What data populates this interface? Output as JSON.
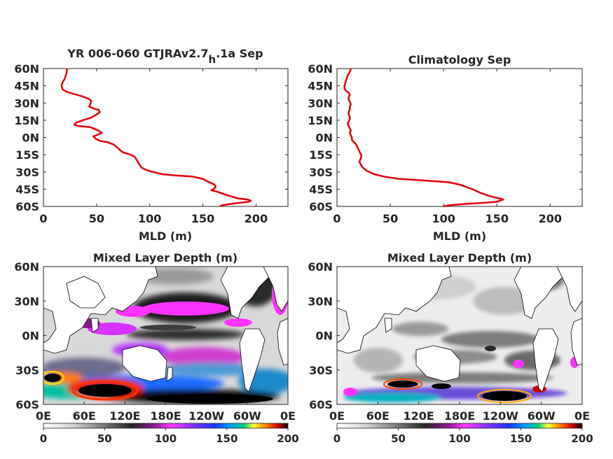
{
  "chart_data": [
    {
      "type": "line",
      "title": "YR 006-060 GTJRAv2.7",
      "title_subscript": "h",
      "title_suffix": ".1a Sep",
      "xlabel": "MLD (m)",
      "ylabel": "",
      "xlim": [
        0,
        230
      ],
      "ylim": [
        -60,
        60
      ],
      "xticks": [
        0,
        50,
        100,
        150,
        200
      ],
      "yticks": [
        "60N",
        "45N",
        "30N",
        "15N",
        "0N",
        "15S",
        "30S",
        "45S",
        "60S"
      ],
      "color": "#e8000b",
      "series": [
        {
          "points": [
            [
              22,
              60
            ],
            [
              22,
              57
            ],
            [
              21,
              54
            ],
            [
              20,
              51
            ],
            [
              18,
              48
            ],
            [
              17,
              45
            ],
            [
              18,
              42
            ],
            [
              21,
              40
            ],
            [
              28,
              38
            ],
            [
              36,
              36
            ],
            [
              42,
              34
            ],
            [
              45,
              32
            ],
            [
              44,
              29
            ],
            [
              43,
              27
            ],
            [
              48,
              25
            ],
            [
              52,
              24
            ],
            [
              53,
              22
            ],
            [
              50,
              20
            ],
            [
              44,
              17
            ],
            [
              37,
              15
            ],
            [
              31,
              13
            ],
            [
              29,
              11
            ],
            [
              33,
              10
            ],
            [
              44,
              9
            ],
            [
              52,
              6
            ],
            [
              55,
              4
            ],
            [
              50,
              2
            ],
            [
              47,
              1
            ],
            [
              49,
              -1
            ],
            [
              53,
              -3
            ],
            [
              60,
              -4
            ],
            [
              66,
              -6
            ],
            [
              70,
              -9
            ],
            [
              72,
              -11
            ],
            [
              75,
              -13
            ],
            [
              82,
              -15
            ],
            [
              86,
              -17
            ],
            [
              88,
              -20
            ],
            [
              90,
              -23
            ],
            [
              92,
              -26
            ],
            [
              96,
              -28
            ],
            [
              103,
              -30
            ],
            [
              112,
              -32
            ],
            [
              124,
              -33
            ],
            [
              140,
              -34
            ],
            [
              150,
              -36
            ],
            [
              156,
              -39
            ],
            [
              161,
              -41
            ],
            [
              162,
              -43
            ],
            [
              160,
              -45
            ],
            [
              158,
              -46
            ],
            [
              163,
              -47
            ],
            [
              172,
              -50
            ],
            [
              183,
              -53
            ],
            [
              192,
              -54
            ],
            [
              195,
              -55
            ],
            [
              193,
              -56
            ],
            [
              183,
              -57
            ],
            [
              175,
              -58
            ],
            [
              168,
              -59
            ],
            [
              166,
              -60
            ]
          ]
        }
      ]
    },
    {
      "type": "line",
      "title": "Climatology Sep",
      "xlabel": "MLD (m)",
      "ylabel": "",
      "xlim": [
        0,
        230
      ],
      "ylim": [
        -60,
        60
      ],
      "xticks": [
        0,
        50,
        100,
        150,
        200
      ],
      "yticks": [
        "60N",
        "45N",
        "30N",
        "15N",
        "0N",
        "15S",
        "30S",
        "45S",
        "60S"
      ],
      "color": "#e8000b",
      "series": [
        {
          "points": [
            [
              13,
              60
            ],
            [
              12,
              57
            ],
            [
              10,
              54
            ],
            [
              9,
              51
            ],
            [
              8,
              48
            ],
            [
              7,
              45
            ],
            [
              7,
              43
            ],
            [
              8,
              41
            ],
            [
              11,
              39
            ],
            [
              12,
              37
            ],
            [
              11,
              35
            ],
            [
              11,
              33
            ],
            [
              12,
              31
            ],
            [
              13,
              29
            ],
            [
              12,
              27
            ],
            [
              12,
              25
            ],
            [
              11,
              22
            ],
            [
              11,
              20
            ],
            [
              12,
              18
            ],
            [
              12,
              16
            ],
            [
              11,
              14
            ],
            [
              10,
              12
            ],
            [
              11,
              10
            ],
            [
              12,
              8
            ],
            [
              13,
              6
            ],
            [
              12,
              4
            ],
            [
              13,
              2
            ],
            [
              14,
              0
            ],
            [
              14,
              -2
            ],
            [
              16,
              -4
            ],
            [
              18,
              -6
            ],
            [
              19,
              -8
            ],
            [
              20,
              -10
            ],
            [
              21,
              -12
            ],
            [
              22,
              -14
            ],
            [
              23,
              -16
            ],
            [
              22,
              -19
            ],
            [
              21,
              -21
            ],
            [
              22,
              -23
            ],
            [
              24,
              -26
            ],
            [
              28,
              -29
            ],
            [
              35,
              -32
            ],
            [
              44,
              -34
            ],
            [
              58,
              -36
            ],
            [
              75,
              -37
            ],
            [
              90,
              -38
            ],
            [
              105,
              -39
            ],
            [
              115,
              -41
            ],
            [
              121,
              -43
            ],
            [
              127,
              -45
            ],
            [
              134,
              -48
            ],
            [
              143,
              -51
            ],
            [
              152,
              -53
            ],
            [
              156,
              -54
            ],
            [
              150,
              -56
            ],
            [
              135,
              -57
            ],
            [
              118,
              -58
            ],
            [
              105,
              -59
            ],
            [
              100,
              -60
            ]
          ]
        }
      ]
    },
    {
      "type": "heatmap",
      "title": "Mixed Layer Depth (m)",
      "xticks": [
        "0E",
        "60E",
        "120E",
        "180E",
        "120W",
        "60W",
        "0E"
      ],
      "yticks": [
        "60N",
        "30N",
        "0N",
        "30S",
        "60S"
      ],
      "colorbar": {
        "ticks": [
          0,
          50,
          100,
          150,
          200
        ],
        "range": [
          0,
          200
        ]
      }
    },
    {
      "type": "heatmap",
      "title": "Mixed Layer Depth (m)",
      "xticks": [
        "0E",
        "60E",
        "120E",
        "180E",
        "120W",
        "60W",
        "0E"
      ],
      "yticks": [
        "60N",
        "30N",
        "0N",
        "30S",
        "60S"
      ],
      "colorbar": {
        "ticks": [
          0,
          50,
          100,
          150,
          200
        ],
        "range": [
          0,
          200
        ]
      }
    }
  ]
}
